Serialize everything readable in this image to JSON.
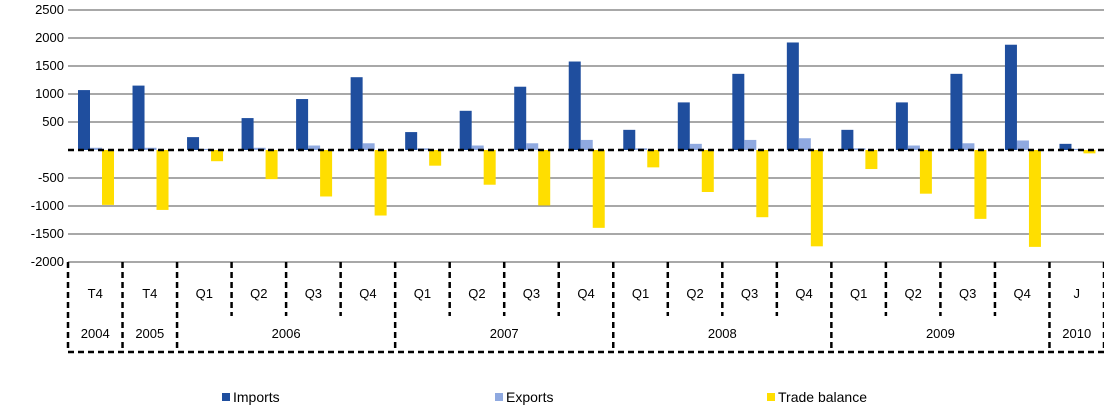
{
  "chart_data": {
    "type": "bar",
    "categories": [
      {
        "quarter": "T4",
        "year": "2004"
      },
      {
        "quarter": "T4",
        "year": "2005"
      },
      {
        "quarter": "Q1",
        "year": "2006"
      },
      {
        "quarter": "Q2",
        "year": "2006"
      },
      {
        "quarter": "Q3",
        "year": "2006"
      },
      {
        "quarter": "Q4",
        "year": "2006"
      },
      {
        "quarter": "Q1",
        "year": "2007"
      },
      {
        "quarter": "Q2",
        "year": "2007"
      },
      {
        "quarter": "Q3",
        "year": "2007"
      },
      {
        "quarter": "Q4",
        "year": "2007"
      },
      {
        "quarter": "Q1",
        "year": "2008"
      },
      {
        "quarter": "Q2",
        "year": "2008"
      },
      {
        "quarter": "Q3",
        "year": "2008"
      },
      {
        "quarter": "Q4",
        "year": "2008"
      },
      {
        "quarter": "Q1",
        "year": "2009"
      },
      {
        "quarter": "Q2",
        "year": "2009"
      },
      {
        "quarter": "Q3",
        "year": "2009"
      },
      {
        "quarter": "Q4",
        "year": "2009"
      },
      {
        "quarter": "J",
        "year": "2010"
      }
    ],
    "year_groups": [
      {
        "label": "2004",
        "start": 0,
        "end": 0
      },
      {
        "label": "2005",
        "start": 1,
        "end": 1
      },
      {
        "label": "2006",
        "start": 2,
        "end": 5
      },
      {
        "label": "2007",
        "start": 6,
        "end": 9
      },
      {
        "label": "2008",
        "start": 10,
        "end": 13
      },
      {
        "label": "2009",
        "start": 14,
        "end": 17
      },
      {
        "label": "2010",
        "start": 18,
        "end": 18
      }
    ],
    "series": [
      {
        "name": "Imports",
        "color": "#1f4e9e",
        "values": [
          1070,
          1150,
          230,
          570,
          910,
          1300,
          320,
          700,
          1130,
          1580,
          360,
          850,
          1360,
          1920,
          360,
          850,
          1360,
          1880,
          110
        ]
      },
      {
        "name": "Exports",
        "color": "#8fa9e0",
        "values": [
          40,
          40,
          20,
          40,
          80,
          120,
          30,
          80,
          120,
          180,
          30,
          110,
          180,
          210,
          30,
          80,
          120,
          170,
          20
        ]
      },
      {
        "name": "Trade balance",
        "color": "#ffde00",
        "values": [
          -980,
          -1070,
          -200,
          -520,
          -830,
          -1170,
          -280,
          -620,
          -990,
          -1390,
          -310,
          -750,
          -1200,
          -1720,
          -340,
          -780,
          -1230,
          -1730,
          -60
        ]
      }
    ],
    "ylim": [
      -2000,
      2500
    ],
    "yticks": [
      "2500",
      "2000",
      "1500",
      "1000",
      "500",
      "-500",
      "-1000",
      "-1500",
      "-2000"
    ],
    "ytick_values": [
      2500,
      2000,
      1500,
      1000,
      500,
      -500,
      -1000,
      -1500,
      -2000
    ],
    "grid": true,
    "legend_position": "bottom",
    "title": "",
    "xlabel": "",
    "ylabel": ""
  }
}
